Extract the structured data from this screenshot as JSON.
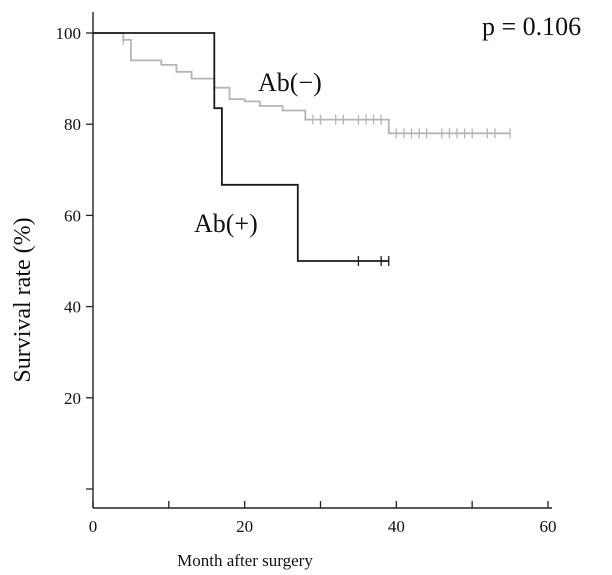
{
  "chart_data": {
    "type": "line",
    "title": "",
    "xlabel": "Month after surgery",
    "ylabel": "Survival rate (%)",
    "xlim": [
      0,
      60
    ],
    "ylim": [
      0,
      100
    ],
    "x_ticks": [
      0,
      20,
      40,
      60
    ],
    "x_minor_ticks": [
      10,
      30,
      50
    ],
    "y_ticks": [
      20,
      40,
      60,
      80,
      100
    ],
    "y_minor_ticks": [
      0
    ],
    "grid": false,
    "annotations": [
      {
        "name": "pvalue",
        "text": "p = 0.106"
      },
      {
        "name": "ab-neg",
        "text": "Ab(−)"
      },
      {
        "name": "ab-pos",
        "text": "Ab(+)"
      }
    ],
    "series": [
      {
        "name": "Ab(−)",
        "color": "#b5b5b5",
        "step_points": [
          [
            0,
            100
          ],
          [
            4,
            100
          ],
          [
            4,
            98.5
          ],
          [
            5,
            98.5
          ],
          [
            5,
            94
          ],
          [
            9,
            94
          ],
          [
            9,
            93
          ],
          [
            11,
            93
          ],
          [
            11,
            91.5
          ],
          [
            13,
            91.5
          ],
          [
            13,
            90
          ],
          [
            16,
            90
          ],
          [
            16,
            88
          ],
          [
            18,
            88
          ],
          [
            18,
            85.5
          ],
          [
            20,
            85.5
          ],
          [
            20,
            85
          ],
          [
            22,
            85
          ],
          [
            22,
            84
          ],
          [
            25,
            84
          ],
          [
            25,
            83
          ],
          [
            28,
            83
          ],
          [
            28,
            81
          ],
          [
            39,
            81
          ],
          [
            39,
            78
          ],
          [
            55,
            78
          ]
        ],
        "censored": [
          4,
          29,
          30,
          32,
          33,
          35,
          36,
          37,
          38,
          40,
          41,
          42,
          43,
          44,
          46,
          47,
          48,
          49,
          50,
          52,
          53,
          55
        ]
      },
      {
        "name": "Ab(+)",
        "color": "#1a1a1a",
        "step_points": [
          [
            0,
            100
          ],
          [
            16,
            100
          ],
          [
            16,
            83.5
          ],
          [
            17,
            83.5
          ],
          [
            17,
            66.7
          ],
          [
            27,
            66.7
          ],
          [
            27,
            50
          ],
          [
            39,
            50
          ]
        ],
        "censored": [
          35,
          38,
          39
        ]
      }
    ]
  }
}
